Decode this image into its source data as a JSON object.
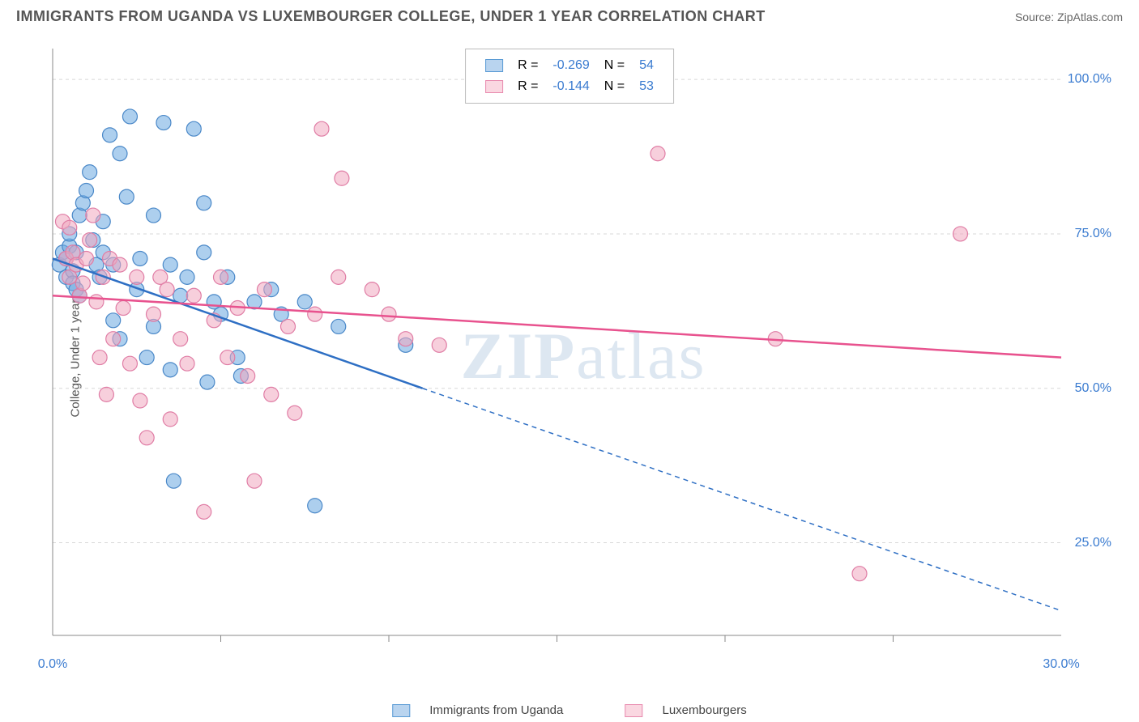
{
  "title": "IMMIGRANTS FROM UGANDA VS LUXEMBOURGER COLLEGE, UNDER 1 YEAR CORRELATION CHART",
  "source": "Source: ZipAtlas.com",
  "ylabel": "College, Under 1 year",
  "watermark_a": "ZIP",
  "watermark_b": "atlas",
  "chart": {
    "type": "scatter",
    "xlim": [
      0,
      30
    ],
    "ylim": [
      10,
      105
    ],
    "xticks": [
      {
        "v": 0,
        "l": "0.0%"
      },
      {
        "v": 30,
        "l": "30.0%"
      }
    ],
    "xtick_minor": [
      5,
      10,
      15,
      20,
      25
    ],
    "ytick_minor": [
      25,
      50,
      75,
      100
    ],
    "yticks": [
      {
        "v": 25,
        "l": "25.0%"
      },
      {
        "v": 50,
        "l": "50.0%"
      },
      {
        "v": 75,
        "l": "75.0%"
      },
      {
        "v": 100,
        "l": "100.0%"
      }
    ],
    "grid_color": "#d8d8d8",
    "axis_color": "#888",
    "background_color": "#ffffff",
    "marker_radius": 9,
    "marker_opacity": 0.55,
    "line_width": 2.5,
    "series": [
      {
        "name": "Immigrants from Uganda",
        "color": "#6aa8e0",
        "stroke": "#4a88c8",
        "line_color": "#2e6fc4",
        "r": "-0.269",
        "n": "54",
        "trend": {
          "x1": 0,
          "y1": 71,
          "x2_solid": 11,
          "y2_solid": 50,
          "x2": 30,
          "y2": 14,
          "solid_until": 11
        },
        "data": [
          [
            0.2,
            70
          ],
          [
            0.3,
            72
          ],
          [
            0.4,
            68
          ],
          [
            0.4,
            71
          ],
          [
            0.5,
            73
          ],
          [
            0.5,
            75
          ],
          [
            0.6,
            69
          ],
          [
            0.6,
            67
          ],
          [
            0.7,
            72
          ],
          [
            0.7,
            66
          ],
          [
            0.8,
            65
          ],
          [
            0.8,
            78
          ],
          [
            0.9,
            80
          ],
          [
            1.0,
            82
          ],
          [
            1.1,
            85
          ],
          [
            1.2,
            74
          ],
          [
            1.3,
            70
          ],
          [
            1.4,
            68
          ],
          [
            1.5,
            77
          ],
          [
            1.5,
            72
          ],
          [
            1.7,
            91
          ],
          [
            1.8,
            61
          ],
          [
            1.8,
            70
          ],
          [
            2.0,
            88
          ],
          [
            2.0,
            58
          ],
          [
            2.2,
            81
          ],
          [
            2.3,
            94
          ],
          [
            2.5,
            66
          ],
          [
            2.6,
            71
          ],
          [
            2.8,
            55
          ],
          [
            3.0,
            60
          ],
          [
            3.0,
            78
          ],
          [
            3.3,
            93
          ],
          [
            3.5,
            70
          ],
          [
            3.5,
            53
          ],
          [
            3.6,
            35
          ],
          [
            3.8,
            65
          ],
          [
            4.0,
            68
          ],
          [
            4.2,
            92
          ],
          [
            4.5,
            80
          ],
          [
            4.5,
            72
          ],
          [
            4.6,
            51
          ],
          [
            4.8,
            64
          ],
          [
            5.0,
            62
          ],
          [
            5.2,
            68
          ],
          [
            5.5,
            55
          ],
          [
            5.6,
            52
          ],
          [
            6.0,
            64
          ],
          [
            6.5,
            66
          ],
          [
            6.8,
            62
          ],
          [
            7.5,
            64
          ],
          [
            7.8,
            31
          ],
          [
            8.5,
            60
          ],
          [
            10.5,
            57
          ]
        ]
      },
      {
        "name": "Luxembourgers",
        "color": "#f0a8c0",
        "stroke": "#e07da5",
        "line_color": "#e8528e",
        "r": "-0.144",
        "n": "53",
        "trend": {
          "x1": 0,
          "y1": 65,
          "x2_solid": 30,
          "y2_solid": 55,
          "x2": 30,
          "y2": 55,
          "solid_until": 30
        },
        "data": [
          [
            0.3,
            77
          ],
          [
            0.4,
            71
          ],
          [
            0.5,
            68
          ],
          [
            0.5,
            76
          ],
          [
            0.6,
            72
          ],
          [
            0.7,
            70
          ],
          [
            0.8,
            65
          ],
          [
            0.9,
            67
          ],
          [
            1.0,
            71
          ],
          [
            1.1,
            74
          ],
          [
            1.2,
            78
          ],
          [
            1.3,
            64
          ],
          [
            1.4,
            55
          ],
          [
            1.5,
            68
          ],
          [
            1.6,
            49
          ],
          [
            1.7,
            71
          ],
          [
            1.8,
            58
          ],
          [
            2.0,
            70
          ],
          [
            2.1,
            63
          ],
          [
            2.3,
            54
          ],
          [
            2.5,
            68
          ],
          [
            2.6,
            48
          ],
          [
            2.8,
            42
          ],
          [
            3.0,
            62
          ],
          [
            3.2,
            68
          ],
          [
            3.4,
            66
          ],
          [
            3.5,
            45
          ],
          [
            3.8,
            58
          ],
          [
            4.0,
            54
          ],
          [
            4.2,
            65
          ],
          [
            4.5,
            30
          ],
          [
            4.8,
            61
          ],
          [
            5.0,
            68
          ],
          [
            5.2,
            55
          ],
          [
            5.5,
            63
          ],
          [
            5.8,
            52
          ],
          [
            6.0,
            35
          ],
          [
            6.3,
            66
          ],
          [
            6.5,
            49
          ],
          [
            7.0,
            60
          ],
          [
            7.2,
            46
          ],
          [
            7.8,
            62
          ],
          [
            8.0,
            92
          ],
          [
            8.5,
            68
          ],
          [
            8.6,
            84
          ],
          [
            9.5,
            66
          ],
          [
            10.0,
            62
          ],
          [
            10.5,
            58
          ],
          [
            11.5,
            57
          ],
          [
            18.0,
            88
          ],
          [
            21.5,
            58
          ],
          [
            24.0,
            20
          ],
          [
            27.0,
            75
          ]
        ]
      }
    ]
  },
  "bottom_legend": {
    "s1": "Immigrants from Uganda",
    "s2": "Luxembourgers"
  }
}
